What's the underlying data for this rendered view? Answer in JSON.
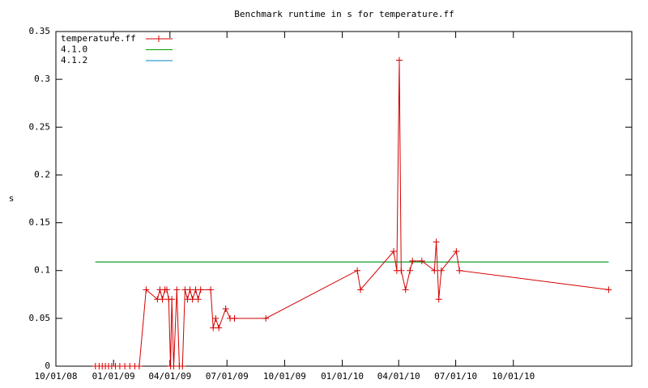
{
  "chart_data": {
    "type": "line",
    "title": "Benchmark runtime in s for temperature.ff",
    "ylabel": "s",
    "xlim": [
      "10/01/08",
      "04/08/11"
    ],
    "xticks": [
      "10/01/08",
      "01/01/09",
      "04/01/09",
      "07/01/09",
      "10/01/09",
      "01/01/10",
      "04/01/10",
      "07/01/10",
      "10/01/10"
    ],
    "ylim": [
      0,
      0.35
    ],
    "yticks": [
      0,
      0.05,
      0.1,
      0.15,
      0.2,
      0.25,
      0.3,
      0.35
    ],
    "grid": false,
    "legend": "top-left",
    "series": [
      {
        "name": "temperature.ff",
        "color": "#d40000",
        "points": true,
        "x": [
          "12/03/08",
          "12/09/08",
          "12/14/08",
          "12/19/08",
          "12/24/08",
          "12/29/08",
          "01/04/09",
          "01/11/09",
          "01/19/09",
          "01/27/09",
          "02/04/09",
          "02/11/09",
          "02/22/09",
          "03/12/09",
          "03/16/09",
          "03/20/09",
          "03/24/09",
          "03/27/09",
          "03/30/09",
          "04/02/09",
          "04/04/09",
          "04/07/09",
          "04/12/09",
          "04/16/09",
          "04/21/09",
          "04/25/09",
          "04/29/09",
          "05/03/09",
          "05/07/09",
          "05/12/09",
          "05/16/09",
          "05/20/09",
          "06/05/09",
          "06/09/09",
          "06/13/09",
          "06/18/09",
          "06/29/09",
          "07/06/09",
          "07/13/09",
          "09/01/09",
          "01/25/10",
          "01/30/10",
          "03/24/10",
          "03/29/10",
          "04/02/10",
          "04/05/10",
          "04/12/10",
          "04/19/10",
          "04/23/10",
          "05/08/10",
          "05/28/10",
          "05/31/10",
          "06/04/10",
          "06/08/10",
          "07/02/10",
          "07/07/10",
          "03/02/11"
        ],
        "values": [
          0,
          0,
          0,
          0,
          0,
          0,
          0,
          0,
          0,
          0,
          0,
          0,
          0.08,
          0.07,
          0.08,
          0.07,
          0.08,
          0.08,
          0.07,
          0,
          0.07,
          0,
          0.08,
          0,
          0,
          0.08,
          0.07,
          0.08,
          0.07,
          0.08,
          0.07,
          0.08,
          0.08,
          0.04,
          0.05,
          0.04,
          0.06,
          0.05,
          0.05,
          0.05,
          0.1,
          0.08,
          0.12,
          0.1,
          0.32,
          0.1,
          0.08,
          0.1,
          0.11,
          0.11,
          0.1,
          0.13,
          0.07,
          0.1,
          0.12,
          0.1,
          0.08
        ]
      },
      {
        "name": "4.1.0",
        "color": "#00a000",
        "points": false,
        "x": [
          "12/03/08",
          "03/02/11"
        ],
        "values": [
          0.109,
          0.109
        ]
      },
      {
        "name": "4.1.2",
        "color": "#0080c0",
        "points": false,
        "x": [
          "12/03/08",
          "03/02/11"
        ],
        "values": [
          0.109,
          0.109
        ]
      }
    ]
  }
}
